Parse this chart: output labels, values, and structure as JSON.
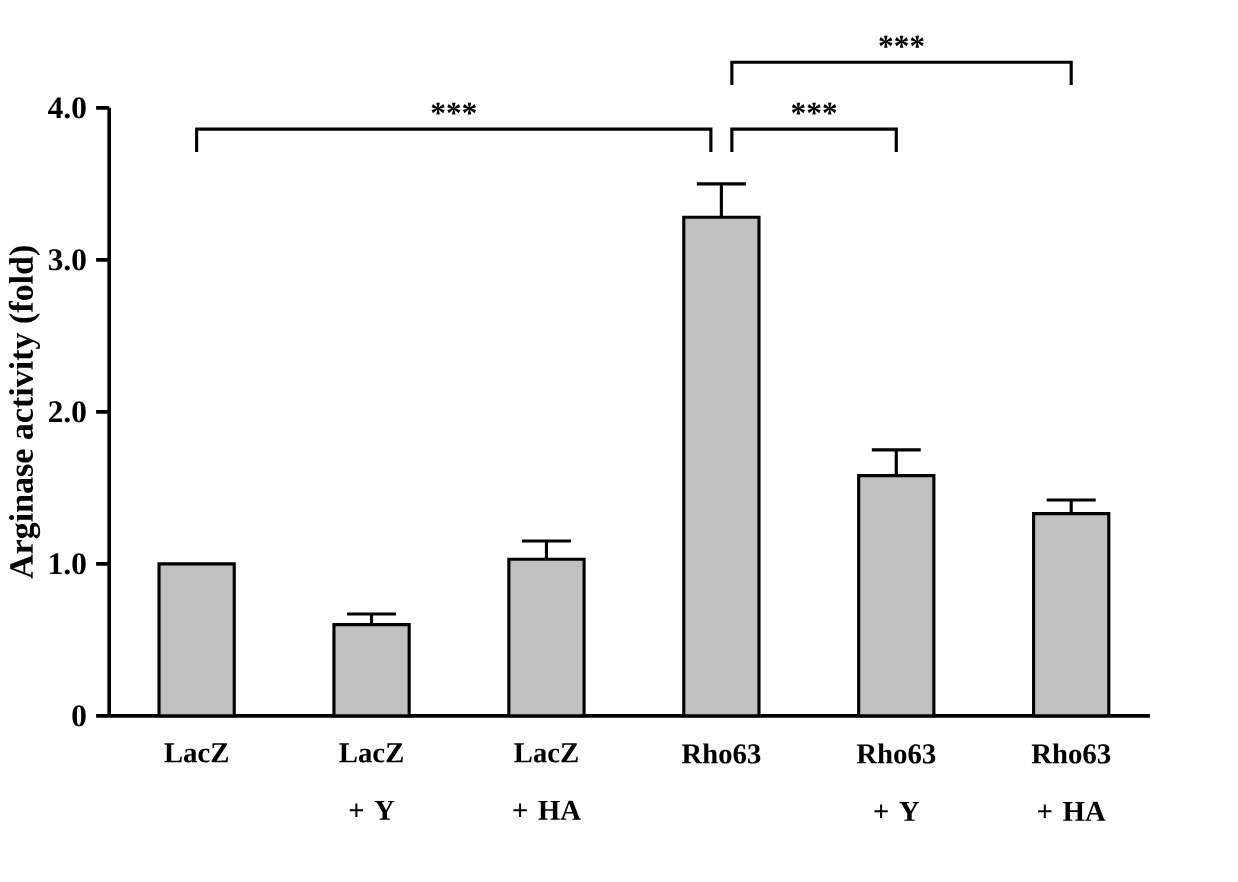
{
  "chart_data": {
    "type": "bar",
    "ylabel": "Arginase activity (fold)",
    "categories": [
      "LacZ",
      "LacZ + Y",
      "LacZ + HA",
      "Rho63",
      "Rho63 + Y",
      "Rho63 + HA"
    ],
    "values": [
      1.0,
      0.6,
      1.03,
      3.28,
      1.58,
      1.33
    ],
    "errors": [
      null,
      [
        0.6,
        0.67
      ],
      [
        1.03,
        1.15
      ],
      [
        3.28,
        3.5
      ],
      [
        1.58,
        1.75
      ],
      [
        1.33,
        1.42
      ]
    ],
    "color": "#c0c0c0",
    "ylim": [
      0,
      4.0
    ],
    "yticks": [
      0,
      {
        "value": 1,
        "label": "1.0"
      },
      {
        "value": 2,
        "label": "2.0"
      },
      {
        "value": 3,
        "label": "3.0"
      },
      {
        "value": 4,
        "label": "4.0"
      }
    ],
    "annotations": [
      "***",
      "***",
      "***"
    ],
    "grid": false
  }
}
